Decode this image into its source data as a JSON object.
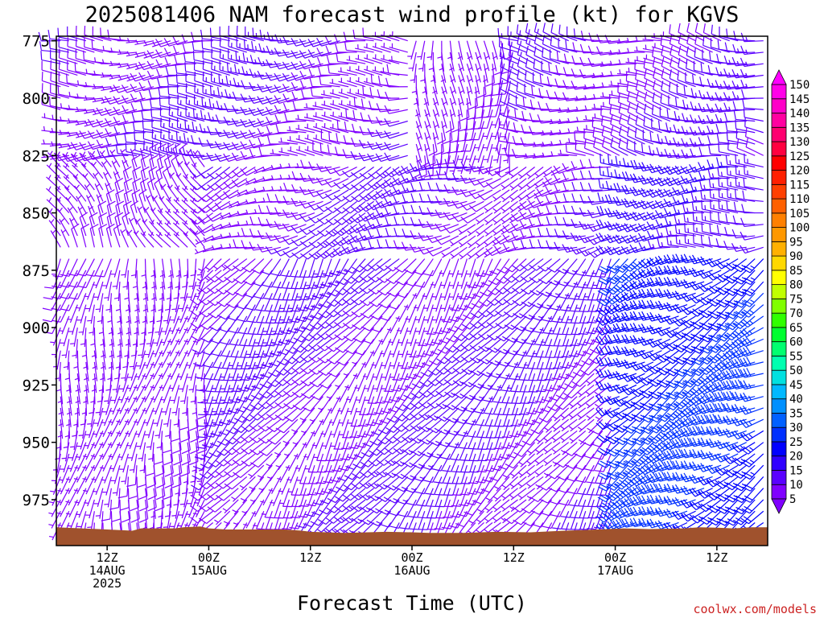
{
  "page": {
    "title": "2025081406 NAM forecast wind profile (kt) for KGVS",
    "credit": "coolwx.com/models"
  },
  "chart_data": {
    "type": "wind-barb profile (time-height)",
    "title": "2025081406 NAM forecast wind profile (kt) for KGVS",
    "xlabel": "Forecast Time (UTC)",
    "ylabel": "",
    "y_axis": {
      "units": "hPa",
      "inverted": true,
      "ticks": [
        775,
        800,
        825,
        850,
        875,
        900,
        925,
        950,
        975
      ],
      "range": [
        773,
        995
      ]
    },
    "x_axis": {
      "range_hours": [
        6,
        90
      ],
      "ticks": [
        {
          "hour": 12,
          "lines": [
            "12Z",
            "14AUG",
            "2025"
          ]
        },
        {
          "hour": 24,
          "lines": [
            "00Z",
            "15AUG"
          ]
        },
        {
          "hour": 36,
          "lines": [
            "12Z"
          ]
        },
        {
          "hour": 48,
          "lines": [
            "00Z",
            "16AUG"
          ]
        },
        {
          "hour": 60,
          "lines": [
            "12Z"
          ]
        },
        {
          "hour": 72,
          "lines": [
            "00Z",
            "17AUG"
          ]
        },
        {
          "hour": 84,
          "lines": [
            "12Z"
          ]
        }
      ]
    },
    "colorbar": {
      "units": "kt",
      "levels": [
        5,
        10,
        15,
        20,
        25,
        30,
        35,
        40,
        45,
        50,
        55,
        60,
        65,
        70,
        75,
        80,
        85,
        90,
        95,
        100,
        105,
        110,
        115,
        120,
        125,
        130,
        135,
        140,
        145,
        150
      ],
      "colors": [
        "#8000ff",
        "#5a00ff",
        "#3000ff",
        "#0000ff",
        "#0030ff",
        "#0060ff",
        "#0090ff",
        "#00b8ff",
        "#00e0e0",
        "#00ffb0",
        "#00ff70",
        "#00ff30",
        "#30ff00",
        "#80ff00",
        "#c0ff00",
        "#ffff00",
        "#ffd800",
        "#ffb000",
        "#ff9800",
        "#ff8000",
        "#ff6000",
        "#ff4000",
        "#ff2000",
        "#ff0000",
        "#ff0040",
        "#ff0070",
        "#ff00a0",
        "#ff00c8",
        "#ff00e8",
        "#ff00ff"
      ]
    },
    "terrain": {
      "color": "#a0522d",
      "surface_hpa": [
        [
          6,
          987
        ],
        [
          9,
          987.5
        ],
        [
          12,
          988
        ],
        [
          15,
          988.5
        ],
        [
          16,
          987.5
        ],
        [
          20,
          987.5
        ],
        [
          21,
          987
        ],
        [
          23,
          986.7
        ],
        [
          24,
          987.5
        ],
        [
          26,
          988
        ],
        [
          30,
          988
        ],
        [
          33,
          988
        ],
        [
          35,
          988.5
        ],
        [
          36,
          989
        ],
        [
          40,
          989.5
        ],
        [
          45,
          989
        ],
        [
          48,
          989.2
        ],
        [
          50,
          989.5
        ],
        [
          54,
          989.5
        ],
        [
          58,
          989
        ],
        [
          62,
          989.2
        ],
        [
          66,
          988.5
        ],
        [
          70,
          988
        ],
        [
          73,
          987.5
        ],
        [
          76,
          987.8
        ],
        [
          80,
          987.5
        ],
        [
          82,
          987
        ],
        [
          84,
          987.2
        ],
        [
          86,
          987.5
        ],
        [
          88,
          987
        ],
        [
          90,
          987
        ]
      ]
    },
    "barb_grid": {
      "time_step_hours": 1,
      "pressure_step_hpa": 5,
      "note": "barbs plotted hourly at every 5 hPa from 775 to the surface; barb color follows speed on the colorbar",
      "wind_regimes": [
        {
          "layer_hpa": [
            775,
            830
          ],
          "hours": [
            6,
            48
          ],
          "direction_deg": 270,
          "speed_kt": 10
        },
        {
          "layer_hpa": [
            775,
            830
          ],
          "hours": [
            48,
            60
          ],
          "direction_deg": 180,
          "speed_kt": 5
        },
        {
          "layer_hpa": [
            775,
            830
          ],
          "hours": [
            60,
            90
          ],
          "direction_deg": 280,
          "speed_kt": 10
        },
        {
          "layer_hpa": [
            830,
            870
          ],
          "hours": [
            6,
            24
          ],
          "direction_deg": 330,
          "speed_kt": 5
        },
        {
          "layer_hpa": [
            830,
            870
          ],
          "hours": [
            24,
            72
          ],
          "direction_deg": 250,
          "speed_kt": 10
        },
        {
          "layer_hpa": [
            830,
            870
          ],
          "hours": [
            72,
            90
          ],
          "direction_deg": 265,
          "speed_kt": 15
        },
        {
          "layer_hpa": [
            870,
            995
          ],
          "hours": [
            6,
            24
          ],
          "direction_deg": 190,
          "speed_kt": 5
        },
        {
          "layer_hpa": [
            870,
            995
          ],
          "hours": [
            24,
            72
          ],
          "direction_deg": 215,
          "speed_kt": 10
        },
        {
          "layer_hpa": [
            870,
            995
          ],
          "hours": [
            72,
            90
          ],
          "direction_deg": 240,
          "speed_kt": 25
        }
      ]
    }
  }
}
